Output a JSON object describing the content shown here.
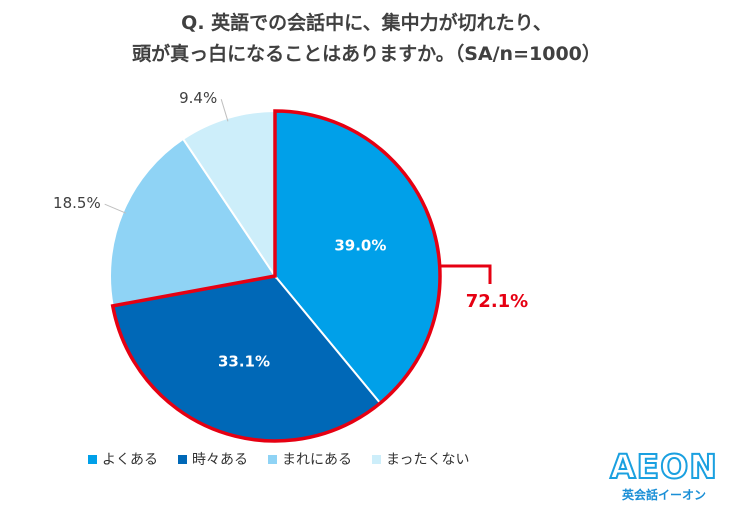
{
  "title": {
    "line1": "Q. 英語での会話中に、集中力が切れたり、",
    "line2": "頭が真っ白になることはありますか。（SA/n=1000）"
  },
  "chart_data": {
    "type": "pie",
    "categories": [
      "よくある",
      "時々ある",
      "まれにある",
      "まったくない"
    ],
    "values": [
      39.0,
      33.1,
      18.5,
      9.4
    ],
    "value_labels": [
      "39.0%",
      "33.1%",
      "18.5%",
      "9.4%"
    ],
    "colors": [
      "#00a0e9",
      "#0068b7",
      "#8fd3f5",
      "#cdeefa"
    ],
    "highlight": {
      "label": "72.1%",
      "categories": [
        "よくある",
        "時々ある"
      ],
      "color": "#e60012"
    },
    "legend": "bottom-left"
  },
  "logo": {
    "mark": "AEON",
    "sub": "英会話イーオン"
  }
}
